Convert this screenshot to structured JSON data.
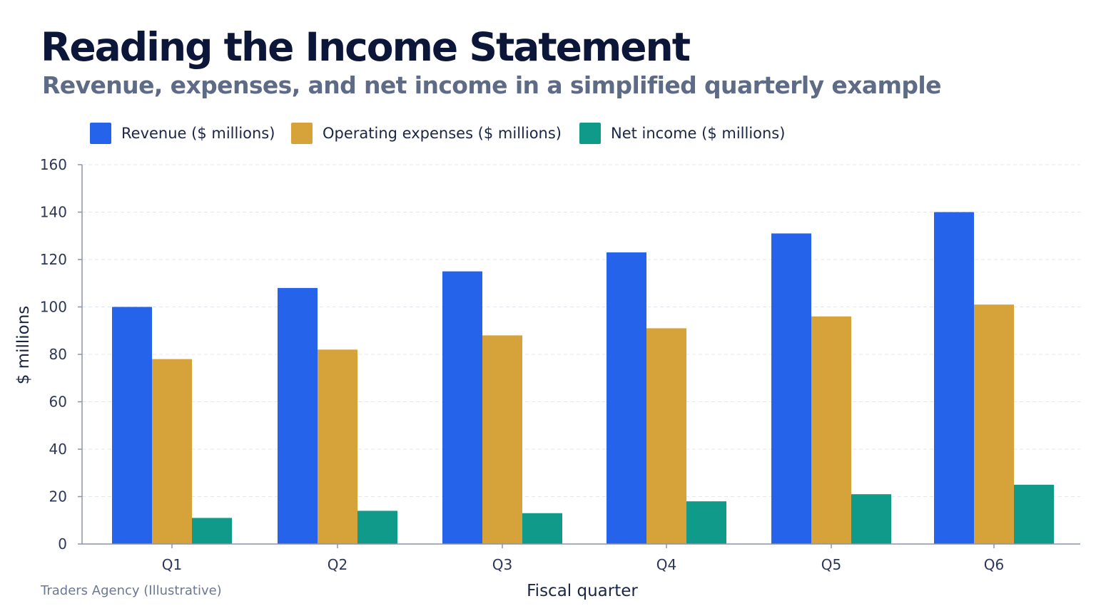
{
  "title": "Reading the Income Statement",
  "subtitle": "Revenue, expenses, and net income in a simplified quarterly example",
  "footnote": "Traders Agency (Illustrative)",
  "chart_data": {
    "type": "bar",
    "categories": [
      "Q1",
      "Q2",
      "Q3",
      "Q4",
      "Q5",
      "Q6"
    ],
    "series": [
      {
        "name": "Revenue ($ millions)",
        "color": "#2563eb",
        "values": [
          100,
          108,
          115,
          123,
          131,
          140
        ]
      },
      {
        "name": "Operating expenses ($ millions)",
        "color": "#d6a23a",
        "values": [
          78,
          82,
          88,
          91,
          96,
          101
        ]
      },
      {
        "name": "Net income ($ millions)",
        "color": "#0f9a8a",
        "values": [
          11,
          14,
          13,
          18,
          21,
          25
        ]
      }
    ],
    "xlabel": "Fiscal quarter",
    "ylabel": "$ millions",
    "ylim": [
      0,
      160
    ],
    "yticks": [
      0,
      20,
      40,
      60,
      80,
      100,
      120,
      140,
      160
    ],
    "grid": true,
    "legend_position": "top-left"
  }
}
